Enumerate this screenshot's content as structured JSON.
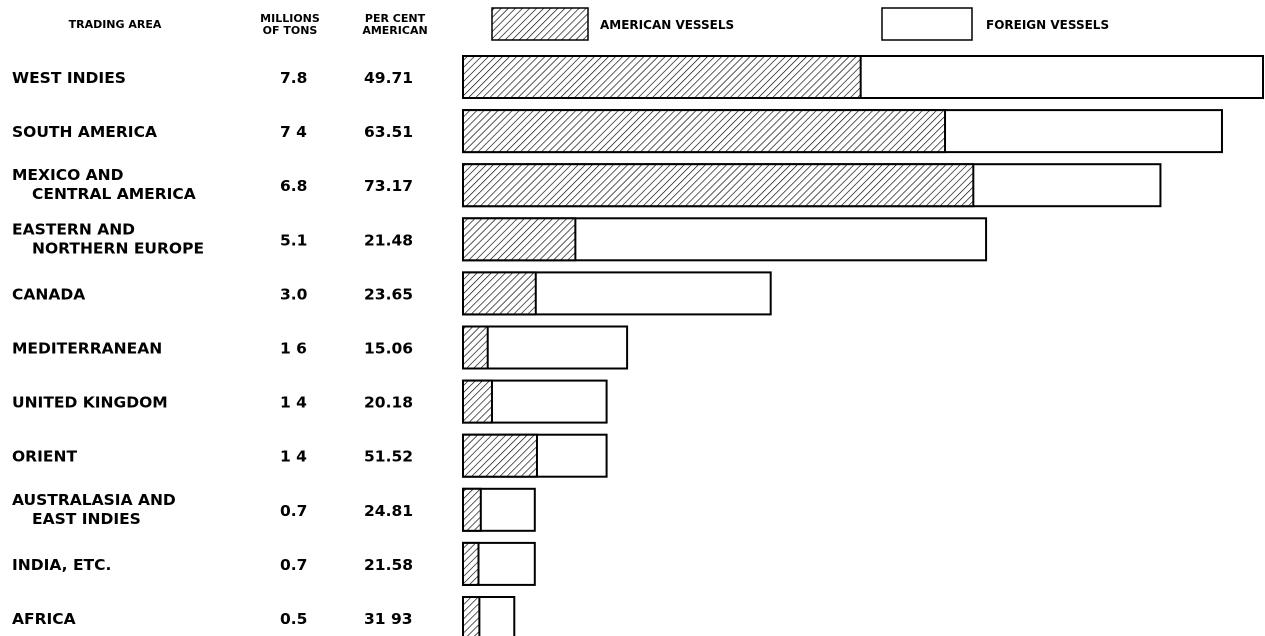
{
  "chart_data": {
    "type": "bar",
    "stacked": true,
    "orientation": "horizontal",
    "headers": {
      "trading_area": "TRADING AREA",
      "tons": [
        "MILLIONS",
        "OF TONS"
      ],
      "percent": [
        "PER CENT",
        "AMERICAN"
      ]
    },
    "legend": {
      "american": "AMERICAN VESSELS",
      "foreign": "FOREIGN VESSELS",
      "placement": "top"
    },
    "rows": [
      {
        "label": [
          "WEST INDIES"
        ],
        "tons": 7.8,
        "tons_label": "7.8",
        "pct": 49.71,
        "pct_label": "49.71"
      },
      {
        "label": [
          "SOUTH AMERICA"
        ],
        "tons": 7.4,
        "tons_label": "7 4",
        "pct": 63.51,
        "pct_label": "63.51"
      },
      {
        "label": [
          "MEXICO AND",
          "CENTRAL AMERICA"
        ],
        "tons": 6.8,
        "tons_label": "6.8",
        "pct": 73.17,
        "pct_label": "73.17"
      },
      {
        "label": [
          "EASTERN AND",
          "NORTHERN EUROPE"
        ],
        "tons": 5.1,
        "tons_label": "5.1",
        "pct": 21.48,
        "pct_label": "21.48"
      },
      {
        "label": [
          "CANADA"
        ],
        "tons": 3.0,
        "tons_label": "3.0",
        "pct": 23.65,
        "pct_label": "23.65"
      },
      {
        "label": [
          "MEDITERRANEAN"
        ],
        "tons": 1.6,
        "tons_label": "1 6",
        "pct": 15.06,
        "pct_label": "15.06"
      },
      {
        "label": [
          "UNITED KINGDOM"
        ],
        "tons": 1.4,
        "tons_label": "1 4",
        "pct": 20.18,
        "pct_label": "20.18"
      },
      {
        "label": [
          "ORIENT"
        ],
        "tons": 1.4,
        "tons_label": "1 4",
        "pct": 51.52,
        "pct_label": "51.52"
      },
      {
        "label": [
          "AUSTRALASIA AND",
          "EAST INDIES"
        ],
        "tons": 0.7,
        "tons_label": "0.7",
        "pct": 24.81,
        "pct_label": "24.81"
      },
      {
        "label": [
          "INDIA, ETC."
        ],
        "tons": 0.7,
        "tons_label": "0.7",
        "pct": 21.58,
        "pct_label": "21.58"
      },
      {
        "label": [
          "AFRICA"
        ],
        "tons": 0.5,
        "tons_label": "0.5",
        "pct": 31.93,
        "pct_label": "31 93"
      }
    ],
    "xlim": [
      0,
      7.8
    ],
    "grid": false,
    "colors": {
      "american_fill": "hatched",
      "foreign_fill": "#ffffff",
      "stroke": "#000000"
    }
  }
}
